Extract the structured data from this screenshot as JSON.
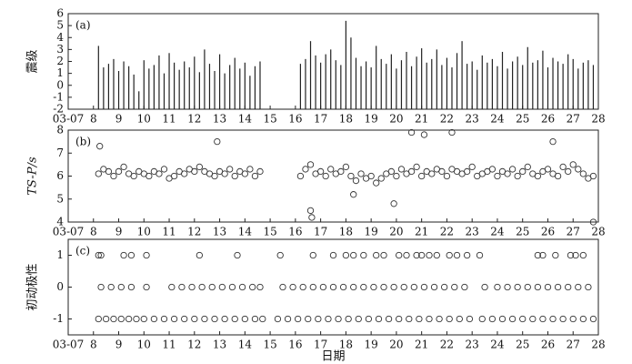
{
  "chart_data": [
    {
      "type": "bar",
      "annotation": "(a)",
      "ylabel": "震级",
      "color": "#222222",
      "x": [
        8.2,
        8.4,
        8.6,
        8.8,
        9,
        9.2,
        9.4,
        9.6,
        9.8,
        10,
        10.2,
        10.4,
        10.6,
        10.8,
        11,
        11.2,
        11.4,
        11.6,
        11.8,
        12,
        12.2,
        12.4,
        12.6,
        12.8,
        13,
        13.2,
        13.4,
        13.6,
        13.8,
        14,
        14.2,
        14.4,
        14.6,
        16.2,
        16.4,
        16.6,
        16.8,
        17,
        17.2,
        17.4,
        17.6,
        17.8,
        18,
        18.2,
        18.4,
        18.6,
        18.8,
        19,
        19.2,
        19.4,
        19.6,
        19.8,
        20,
        20.2,
        20.4,
        20.6,
        20.8,
        21,
        21.2,
        21.4,
        21.6,
        21.8,
        22,
        22.2,
        22.4,
        22.6,
        22.8,
        23,
        23.2,
        23.4,
        23.6,
        23.8,
        24,
        24.2,
        24.4,
        24.6,
        24.8,
        25,
        25.2,
        25.4,
        25.6,
        25.8,
        26,
        26.2,
        26.4,
        26.6,
        26.8,
        27,
        27.2,
        27.4,
        27.6,
        27.8
      ],
      "values": [
        3.3,
        1.5,
        1.8,
        2.2,
        1.2,
        2.0,
        1.6,
        0.9,
        -0.5,
        2.1,
        1.4,
        1.7,
        2.5,
        1.0,
        2.7,
        1.9,
        1.3,
        2.0,
        1.5,
        2.4,
        1.1,
        3.0,
        1.8,
        1.2,
        2.6,
        1.0,
        1.7,
        2.3,
        1.4,
        1.9,
        0.8,
        1.6,
        2.0,
        1.8,
        2.2,
        3.7,
        2.5,
        1.9,
        2.6,
        3.0,
        2.1,
        1.7,
        5.4,
        4.0,
        2.3,
        1.6,
        2.0,
        1.5,
        3.3,
        2.2,
        1.8,
        2.6,
        1.4,
        2.1,
        2.8,
        1.6,
        2.4,
        3.1,
        1.9,
        2.2,
        3.0,
        1.7,
        2.3,
        1.5,
        2.7,
        3.7,
        1.8,
        2.0,
        1.3,
        2.5,
        1.9,
        2.2,
        1.6,
        2.8,
        1.4,
        2.0,
        2.4,
        1.7,
        3.2,
        1.9,
        2.1,
        2.9,
        1.5,
        2.3,
        2.0,
        1.8,
        2.6,
        2.2,
        1.4,
        1.9,
        2.1,
        1.7
      ],
      "xlim": [
        7,
        28
      ],
      "xticks": [
        {
          "value": 7,
          "label": "03-07"
        },
        8,
        9,
        10,
        11,
        12,
        13,
        14,
        15,
        16,
        17,
        18,
        19,
        20,
        21,
        22,
        23,
        24,
        25,
        26,
        27,
        28
      ],
      "ylim": [
        -2,
        6
      ],
      "yticks": [
        -2,
        -1,
        0,
        1,
        2,
        3,
        4,
        5,
        6
      ]
    },
    {
      "type": "scatter",
      "annotation": "(b)",
      "ylabel": "TS-P/s",
      "color": "#333333",
      "x": [
        8.2,
        8.4,
        8.6,
        8.8,
        9,
        9.2,
        9.4,
        9.6,
        9.8,
        10,
        10.2,
        10.4,
        10.6,
        10.8,
        11,
        11.2,
        11.4,
        11.6,
        11.8,
        12,
        12.2,
        12.4,
        12.6,
        12.8,
        13,
        13.2,
        13.4,
        13.6,
        13.8,
        14,
        14.2,
        14.4,
        14.6,
        16.2,
        16.4,
        16.6,
        16.8,
        17,
        17.2,
        17.4,
        17.6,
        17.8,
        18,
        18.2,
        18.4,
        18.6,
        18.8,
        19,
        19.2,
        19.4,
        19.6,
        19.8,
        20,
        20.2,
        20.4,
        20.6,
        20.8,
        21,
        21.2,
        21.4,
        21.6,
        21.8,
        22,
        22.2,
        22.4,
        22.6,
        22.8,
        23,
        23.2,
        23.4,
        23.6,
        23.8,
        24,
        24.2,
        24.4,
        24.6,
        24.8,
        25,
        25.2,
        25.4,
        25.6,
        25.8,
        26,
        26.2,
        26.4,
        26.6,
        26.8,
        27,
        27.2,
        27.4,
        27.6,
        27.8,
        8.25,
        12.9,
        16.6,
        16.65,
        20.6,
        21.1,
        22.2,
        26.2,
        18.3,
        19.9,
        27.8
      ],
      "values": [
        6.1,
        6.3,
        6.2,
        6.0,
        6.2,
        6.4,
        6.1,
        6.0,
        6.2,
        6.1,
        6.0,
        6.2,
        6.1,
        6.3,
        5.9,
        6.0,
        6.2,
        6.1,
        6.3,
        6.2,
        6.4,
        6.2,
        6.1,
        6.0,
        6.2,
        6.1,
        6.3,
        6.0,
        6.2,
        6.1,
        6.3,
        6.0,
        6.2,
        6.0,
        6.3,
        6.5,
        6.1,
        6.2,
        6.0,
        6.3,
        6.1,
        6.2,
        6.4,
        6.0,
        5.8,
        6.1,
        5.9,
        6.0,
        5.7,
        5.9,
        6.1,
        6.2,
        6.0,
        6.3,
        6.1,
        6.2,
        6.4,
        6.0,
        6.2,
        6.1,
        6.3,
        6.2,
        6.0,
        6.3,
        6.2,
        6.1,
        6.2,
        6.4,
        6.0,
        6.1,
        6.2,
        6.3,
        6.0,
        6.2,
        6.1,
        6.3,
        6.0,
        6.2,
        6.4,
        6.1,
        6.0,
        6.2,
        6.3,
        6.1,
        6.0,
        6.4,
        6.2,
        6.5,
        6.3,
        6.1,
        5.9,
        6.0,
        7.3,
        7.5,
        4.5,
        4.2,
        7.9,
        7.8,
        7.9,
        7.5,
        5.2,
        4.8,
        4.0
      ],
      "xlim": [
        7,
        28
      ],
      "xticks": [
        {
          "value": 7,
          "label": "03-07"
        },
        8,
        9,
        10,
        11,
        12,
        13,
        14,
        15,
        16,
        17,
        18,
        19,
        20,
        21,
        22,
        23,
        24,
        25,
        26,
        27,
        28
      ],
      "ylim": [
        4,
        8
      ],
      "yticks": [
        4,
        5,
        6,
        7,
        8
      ]
    },
    {
      "type": "scatter",
      "annotation": "(c)",
      "ylabel": "初动极性",
      "xlabel": "日期",
      "color": "#333333",
      "x": [
        8.2,
        8.5,
        8.8,
        9.1,
        9.4,
        9.7,
        10,
        10.4,
        10.8,
        11.2,
        11.6,
        12,
        12.4,
        12.8,
        13.2,
        13.6,
        14,
        14.4,
        14.7,
        15.3,
        15.7,
        16.1,
        16.5,
        16.9,
        17.3,
        17.7,
        18.1,
        18.5,
        18.9,
        19.3,
        19.7,
        20.1,
        20.5,
        20.9,
        21.3,
        21.7,
        22.1,
        22.5,
        22.9,
        23.4,
        23.8,
        24.2,
        24.6,
        25,
        25.4,
        25.8,
        26.2,
        26.6,
        27,
        27.4,
        27.8,
        8.3,
        8.7,
        9.1,
        9.5,
        10.1,
        11.1,
        11.5,
        11.9,
        12.3,
        12.7,
        13.1,
        13.5,
        13.9,
        14.3,
        14.6,
        15.5,
        15.9,
        16.3,
        16.7,
        17.1,
        17.5,
        17.9,
        18.3,
        18.7,
        19.1,
        19.5,
        19.9,
        20.3,
        20.7,
        21.1,
        21.5,
        21.9,
        22.3,
        22.7,
        23.5,
        24,
        24.4,
        24.8,
        25.2,
        25.6,
        26,
        26.4,
        26.8,
        27.2,
        27.6,
        8.2,
        8.3,
        9.2,
        9.5,
        10.1,
        12.2,
        13.7,
        15.4,
        16.7,
        17.5,
        18,
        18.3,
        18.7,
        19.2,
        19.5,
        20.1,
        20.4,
        20.8,
        21,
        21.3,
        21.6,
        22.1,
        22.4,
        22.8,
        23.3,
        25.6,
        25.8,
        26.3,
        26.9,
        27.1,
        27.4
      ],
      "values": [
        -1,
        -1,
        -1,
        -1,
        -1,
        -1,
        -1,
        -1,
        -1,
        -1,
        -1,
        -1,
        -1,
        -1,
        -1,
        -1,
        -1,
        -1,
        -1,
        -1,
        -1,
        -1,
        -1,
        -1,
        -1,
        -1,
        -1,
        -1,
        -1,
        -1,
        -1,
        -1,
        -1,
        -1,
        -1,
        -1,
        -1,
        -1,
        -1,
        -1,
        -1,
        -1,
        -1,
        -1,
        -1,
        -1,
        -1,
        -1,
        -1,
        -1,
        -1,
        0,
        0,
        0,
        0,
        0,
        0,
        0,
        0,
        0,
        0,
        0,
        0,
        0,
        0,
        0,
        0,
        0,
        0,
        0,
        0,
        0,
        0,
        0,
        0,
        0,
        0,
        0,
        0,
        0,
        0,
        0,
        0,
        0,
        0,
        0,
        0,
        0,
        0,
        0,
        0,
        0,
        0,
        0,
        0,
        0,
        1,
        1,
        1,
        1,
        1,
        1,
        1,
        1,
        1,
        1,
        1,
        1,
        1,
        1,
        1,
        1,
        1,
        1,
        1,
        1,
        1,
        1,
        1,
        1,
        1,
        1,
        1,
        1,
        1,
        1,
        1
      ],
      "xlim": [
        7,
        28
      ],
      "xticks": [
        {
          "value": 7,
          "label": "03-07"
        },
        8,
        9,
        10,
        11,
        12,
        13,
        14,
        15,
        16,
        17,
        18,
        19,
        20,
        21,
        22,
        23,
        24,
        25,
        26,
        27,
        28
      ],
      "ylim": [
        -1.5,
        1.5
      ],
      "yticks": [
        -1,
        0,
        1
      ]
    }
  ]
}
